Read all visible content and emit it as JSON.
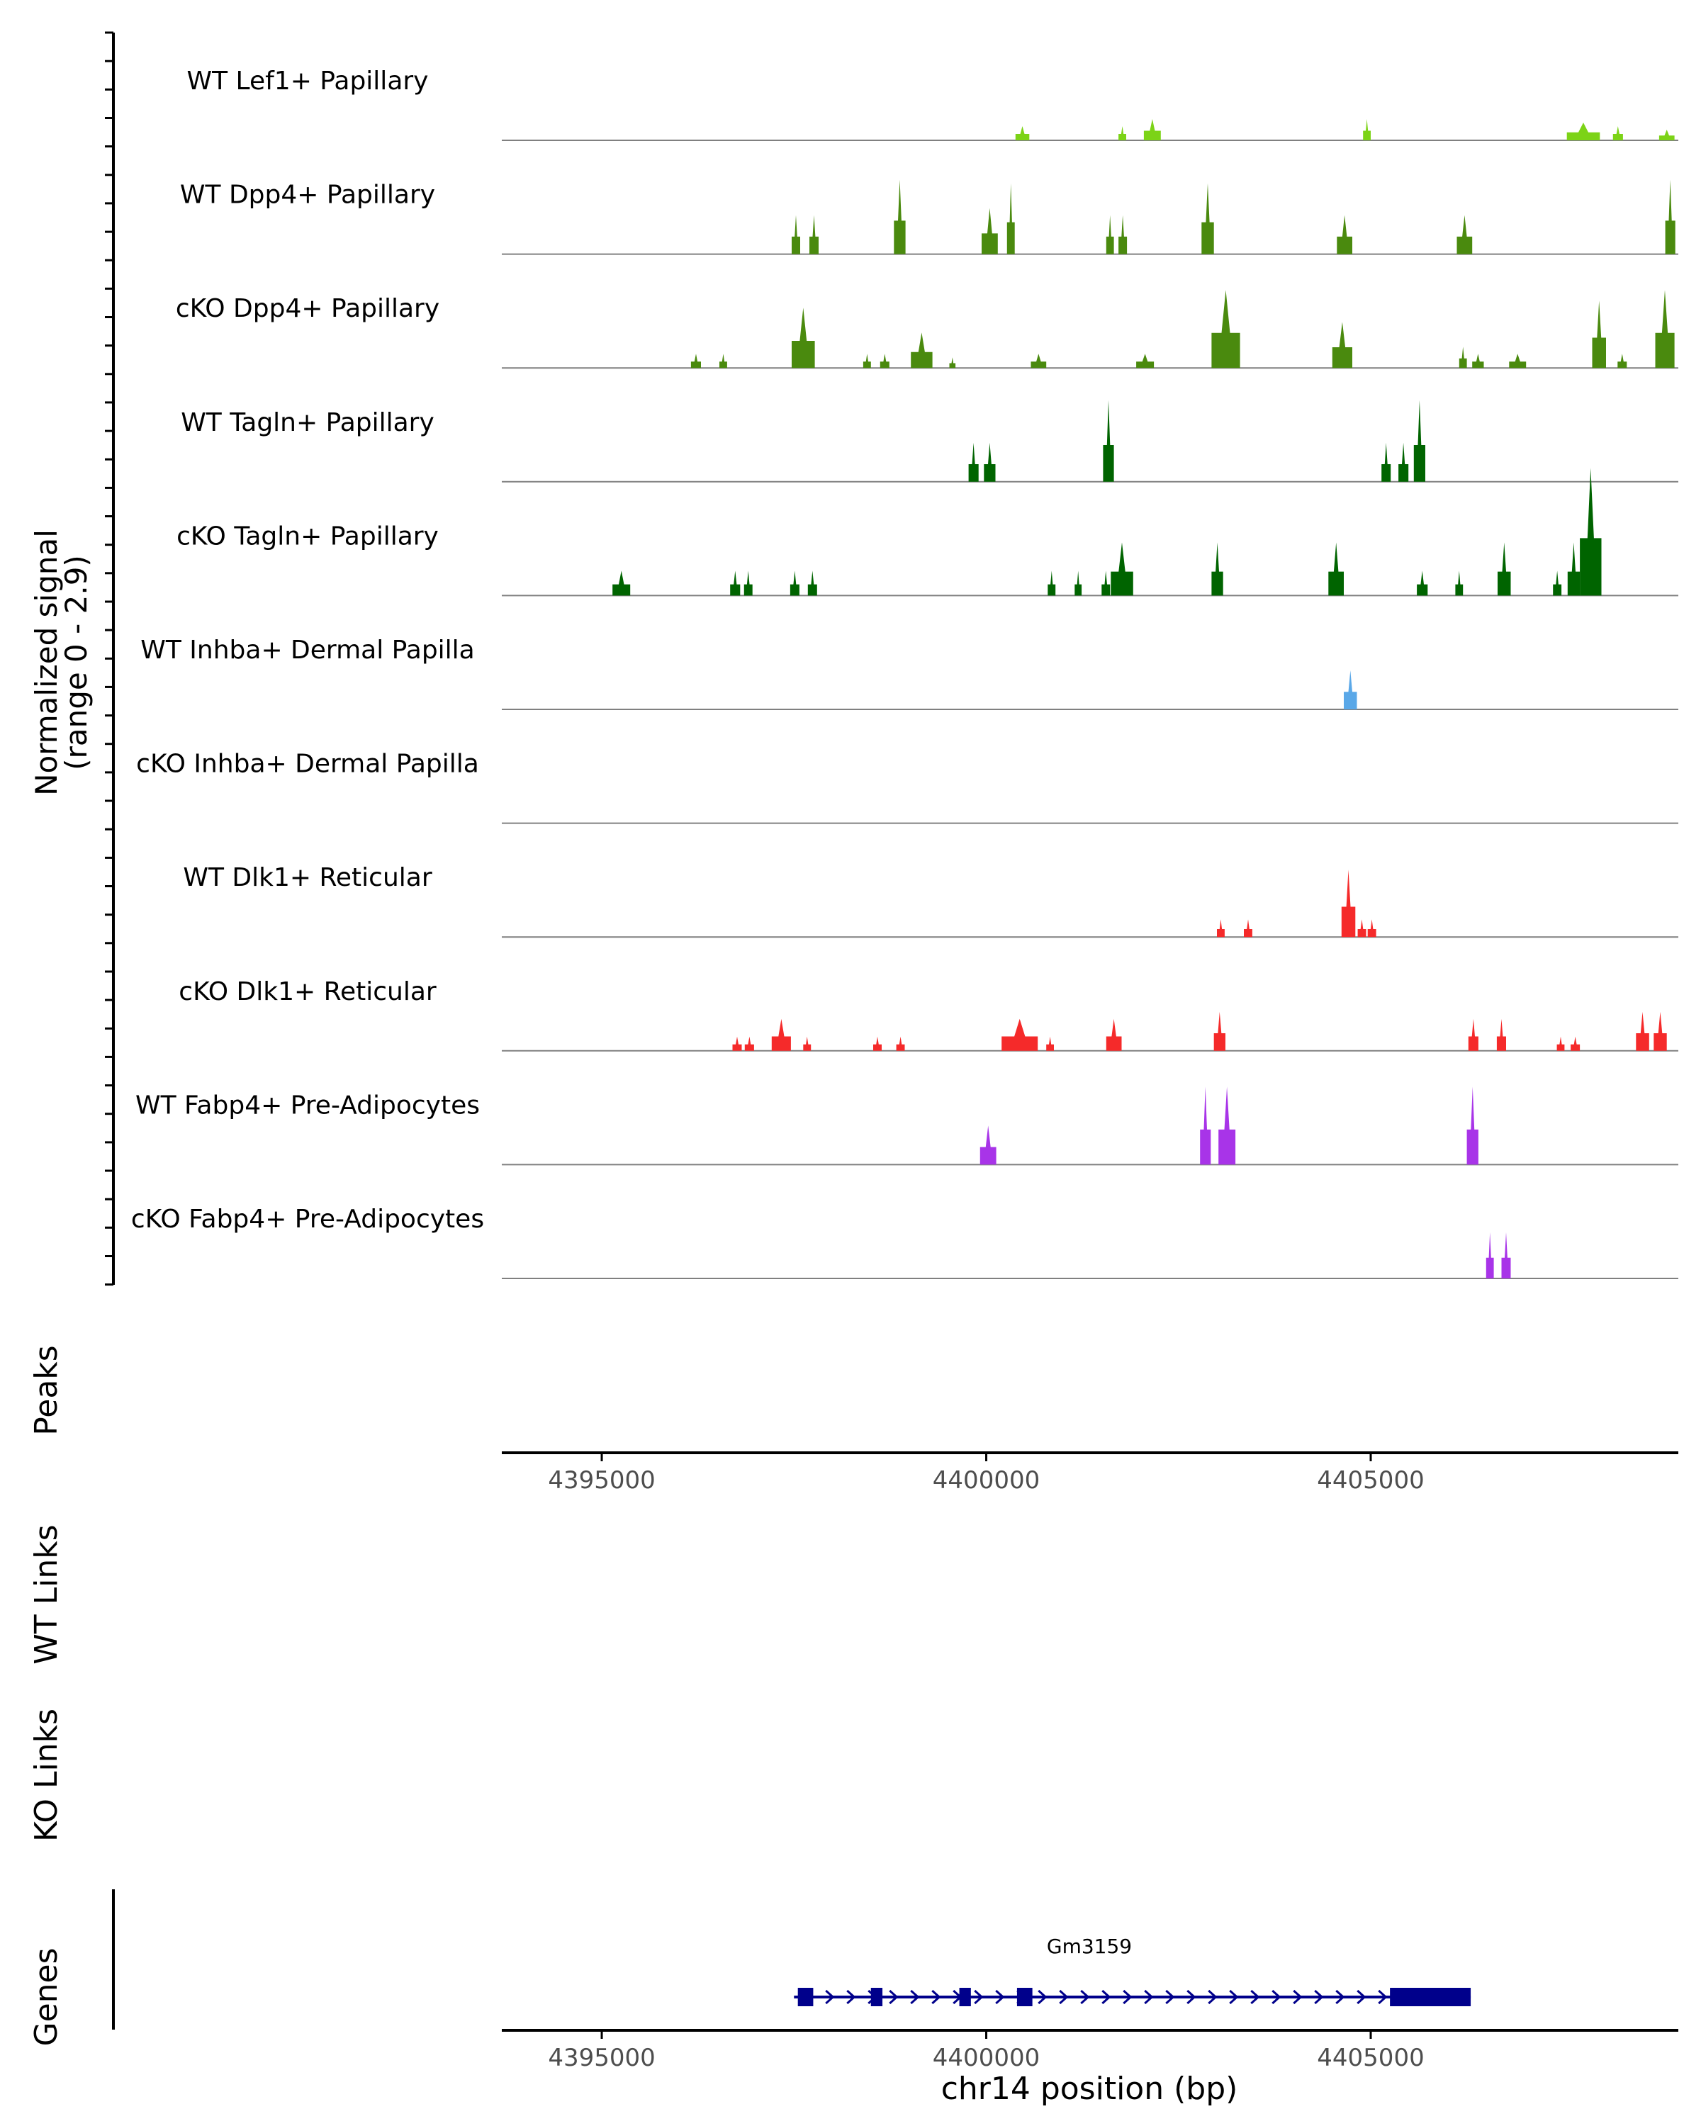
{
  "chart_data": {
    "type": "area",
    "title": "",
    "ylabel": "Normalized signal (range 0 - 2.9)",
    "ylabel_lines": [
      "Normalized signal",
      "(range 0 - 2.9)"
    ],
    "ylim": [
      0,
      2.9
    ],
    "xlabel": "chr14 position (bp)",
    "xlim": [
      4393700,
      4409000
    ],
    "x_ticks": [
      4395000,
      4400000,
      4405000
    ],
    "x_tick_labels": [
      "4395000",
      "4400000",
      "4405000"
    ],
    "tracks": [
      {
        "name": "WT Lef1+ Papillary",
        "color": "#7cd317",
        "peaks": [
          [
            4400380,
            4400560,
            0.2
          ],
          [
            4401720,
            4401820,
            0.2
          ],
          [
            4402050,
            4402270,
            0.3
          ],
          [
            4404900,
            4405000,
            0.3
          ],
          [
            4407550,
            4407980,
            0.25
          ],
          [
            4408150,
            4408280,
            0.2
          ],
          [
            4408750,
            4408950,
            0.15
          ]
        ]
      },
      {
        "name": "WT Dpp4+ Papillary",
        "color": "#4a8a0e",
        "peaks": [
          [
            4397470,
            4397580,
            0.55
          ],
          [
            4397700,
            4397820,
            0.55
          ],
          [
            4398800,
            4398950,
            1.05
          ],
          [
            4399940,
            4400150,
            0.65
          ],
          [
            4400270,
            4400370,
            1.0
          ],
          [
            4401560,
            4401660,
            0.55
          ],
          [
            4401720,
            4401830,
            0.55
          ],
          [
            4402800,
            4402960,
            1.0
          ],
          [
            4404560,
            4404760,
            0.55
          ],
          [
            4406120,
            4406320,
            0.55
          ],
          [
            4408830,
            4408960,
            1.05
          ]
        ]
      },
      {
        "name": "cKO Dpp4+ Papillary",
        "color": "#4a8a0e",
        "peaks": [
          [
            4396160,
            4396290,
            0.2
          ],
          [
            4396530,
            4396630,
            0.2
          ],
          [
            4397470,
            4397770,
            0.85
          ],
          [
            4398400,
            4398500,
            0.2
          ],
          [
            4398620,
            4398740,
            0.2
          ],
          [
            4399020,
            4399300,
            0.5
          ],
          [
            4399520,
            4399600,
            0.15
          ],
          [
            4400580,
            4400780,
            0.2
          ],
          [
            4401950,
            4402180,
            0.2
          ],
          [
            4402930,
            4403300,
            1.1
          ],
          [
            4404500,
            4404760,
            0.65
          ],
          [
            4406150,
            4406250,
            0.3
          ],
          [
            4406320,
            4406470,
            0.2
          ],
          [
            4406800,
            4407020,
            0.2
          ],
          [
            4407880,
            4408060,
            0.95
          ],
          [
            4408210,
            4408330,
            0.2
          ],
          [
            4408700,
            4408950,
            1.1
          ]
        ]
      },
      {
        "name": "WT Tagln+ Papillary",
        "color": "#006400",
        "peaks": [
          [
            4399770,
            4399900,
            0.55
          ],
          [
            4399970,
            4400120,
            0.55
          ],
          [
            4401520,
            4401660,
            1.15
          ],
          [
            4405140,
            4405260,
            0.55
          ],
          [
            4405360,
            4405490,
            0.55
          ],
          [
            4405560,
            4405710,
            1.15
          ]
        ]
      },
      {
        "name": "cKO Tagln+ Papillary",
        "color": "#006400",
        "peaks": [
          [
            4395140,
            4395370,
            0.35
          ],
          [
            4396670,
            4396800,
            0.35
          ],
          [
            4396850,
            4396960,
            0.35
          ],
          [
            4397450,
            4397570,
            0.35
          ],
          [
            4397680,
            4397800,
            0.35
          ],
          [
            4400800,
            4400900,
            0.35
          ],
          [
            4401150,
            4401240,
            0.35
          ],
          [
            4401500,
            4401610,
            0.35
          ],
          [
            4401620,
            4401910,
            0.75
          ],
          [
            4402930,
            4403080,
            0.75
          ],
          [
            4404450,
            4404650,
            0.75
          ],
          [
            4405600,
            4405740,
            0.35
          ],
          [
            4406100,
            4406200,
            0.35
          ],
          [
            4406650,
            4406820,
            0.75
          ],
          [
            4407370,
            4407480,
            0.35
          ],
          [
            4407560,
            4407720,
            0.75
          ],
          [
            4407720,
            4408000,
            1.8
          ]
        ]
      },
      {
        "name": "WT Inhba+ Dermal Papilla",
        "color": "#5aa8e8",
        "peaks": [
          [
            4404650,
            4404820,
            0.55
          ]
        ]
      },
      {
        "name": "cKO Inhba+ Dermal Papilla",
        "color": "#5aa8e8",
        "peaks": []
      },
      {
        "name": "WT Dlk1+ Reticular",
        "color": "#f52a2a",
        "peaks": [
          [
            4403000,
            4403100,
            0.25
          ],
          [
            4403350,
            4403460,
            0.25
          ],
          [
            4404620,
            4404800,
            0.95
          ],
          [
            4404830,
            4404940,
            0.25
          ],
          [
            4404960,
            4405070,
            0.25
          ]
        ]
      },
      {
        "name": "cKO Dlk1+ Reticular",
        "color": "#f52a2a",
        "peaks": [
          [
            4396700,
            4396820,
            0.2
          ],
          [
            4396860,
            4396980,
            0.2
          ],
          [
            4397210,
            4397460,
            0.45
          ],
          [
            4397620,
            4397720,
            0.2
          ],
          [
            4398530,
            4398640,
            0.2
          ],
          [
            4398830,
            4398940,
            0.2
          ],
          [
            4400200,
            4400670,
            0.45
          ],
          [
            4400780,
            4400880,
            0.2
          ],
          [
            4401560,
            4401760,
            0.45
          ],
          [
            4402960,
            4403110,
            0.55
          ],
          [
            4406270,
            4406400,
            0.45
          ],
          [
            4406640,
            4406760,
            0.45
          ],
          [
            4407420,
            4407520,
            0.2
          ],
          [
            4407600,
            4407720,
            0.2
          ],
          [
            4408450,
            4408620,
            0.55
          ],
          [
            4408680,
            4408850,
            0.55
          ]
        ]
      },
      {
        "name": "WT Fabp4+ Pre-Adipocytes",
        "color": "#a834e8",
        "peaks": [
          [
            4399920,
            4400130,
            0.55
          ],
          [
            4402780,
            4402920,
            1.1
          ],
          [
            4403020,
            4403240,
            1.1
          ],
          [
            4406250,
            4406400,
            1.1
          ]
        ]
      },
      {
        "name": "cKO Fabp4+ Pre-Adipocytes",
        "color": "#a834e8",
        "peaks": [
          [
            4406500,
            4406600,
            0.65
          ],
          [
            4406700,
            4406820,
            0.65
          ]
        ]
      }
    ]
  },
  "panels": {
    "peaks_label": "Peaks",
    "wt_links_label": "WT Links",
    "ko_links_label": "KO Links",
    "genes_label": "Genes"
  },
  "gene": {
    "name": "Gm3159",
    "color": "#00008b",
    "start": 4397500,
    "end": 4406300,
    "strand": "+",
    "exons": [
      [
        4397550,
        4397750
      ],
      [
        4398500,
        4398650
      ],
      [
        4399650,
        4399800
      ],
      [
        4400400,
        4400600
      ],
      [
        4405250,
        4406300
      ]
    ]
  }
}
